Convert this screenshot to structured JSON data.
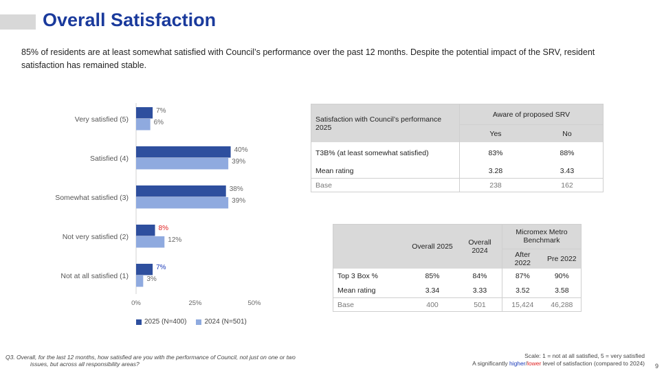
{
  "header": {
    "title": "Overall Satisfaction",
    "subtitle": "85% of residents are at least somewhat satisfied with Council’s performance over the past 12 months. Despite the potential impact of the SRV, resident satisfaction has remained stable."
  },
  "chart_data": {
    "type": "bar",
    "orientation": "horizontal",
    "categories": [
      "Very satisfied (5)",
      "Satisfied (4)",
      "Somewhat satisfied (3)",
      "Not very satisfied (2)",
      "Not at all satisfied (1)"
    ],
    "series": [
      {
        "name": "2025 (N=400)",
        "color": "#2e4f9e",
        "values": [
          7,
          40,
          38,
          8,
          7
        ],
        "labels": [
          "7%",
          "40%",
          "38%",
          "8%",
          "7%"
        ],
        "label_colors": [
          "#666666",
          "#666666",
          "#666666",
          "#e02020",
          "#1a3ab8"
        ]
      },
      {
        "name": "2024 (N=501)",
        "color": "#8faadf",
        "values": [
          6,
          39,
          39,
          12,
          3
        ],
        "labels": [
          "6%",
          "39%",
          "39%",
          "12%",
          "3%"
        ],
        "label_colors": [
          "#666666",
          "#666666",
          "#666666",
          "#666666",
          "#666666"
        ]
      }
    ],
    "xlim": [
      0,
      50
    ],
    "xticks": [
      0,
      25,
      50
    ],
    "xtick_labels": [
      "0%",
      "25%",
      "50%"
    ],
    "legend": "bottom-left",
    "grid": false
  },
  "table_srv": {
    "row_header": "Satisfaction with Council’s performance 2025",
    "group_header": "Aware of proposed SRV",
    "columns": [
      "Yes",
      "No"
    ],
    "rows": [
      {
        "label": "T3B% (at least somewhat satisfied)",
        "values": [
          "83%",
          "88%"
        ]
      },
      {
        "label": "Mean rating",
        "values": [
          "3.28",
          "3.43"
        ]
      }
    ],
    "base": {
      "label": "Base",
      "values": [
        "238",
        "162"
      ]
    }
  },
  "table_benchmark": {
    "col_overall_2025": "Overall 2025",
    "col_overall_2024": "Overall 2024",
    "group_header": "Micromex Metro Benchmark",
    "sub_columns": [
      "After 2022",
      "Pre 2022"
    ],
    "rows": [
      {
        "label": "Top 3 Box %",
        "values": [
          "85%",
          "84%",
          "87%",
          "90%"
        ]
      },
      {
        "label": "Mean rating",
        "values": [
          "3.34",
          "3.33",
          "3.52",
          "3.58"
        ]
      }
    ],
    "base": {
      "label": "Base",
      "values": [
        "400",
        "501",
        "15,424",
        "46,288"
      ]
    }
  },
  "footer": {
    "question_line1": "Q3. Overall, for the last 12 months, how satisfied are you with the performance of Council, not just on one or two",
    "question_line2": "issues, but across all responsibility areas?",
    "scale": "Scale: 1 = not at all satisfied, 5 = very satisfied",
    "sig_prefix": "A significantly ",
    "sig_higher": "higher",
    "sig_slash": "/",
    "sig_lower": "lower",
    "sig_suffix": " level of satisfaction (compared to 2024)",
    "page_number": "9"
  }
}
